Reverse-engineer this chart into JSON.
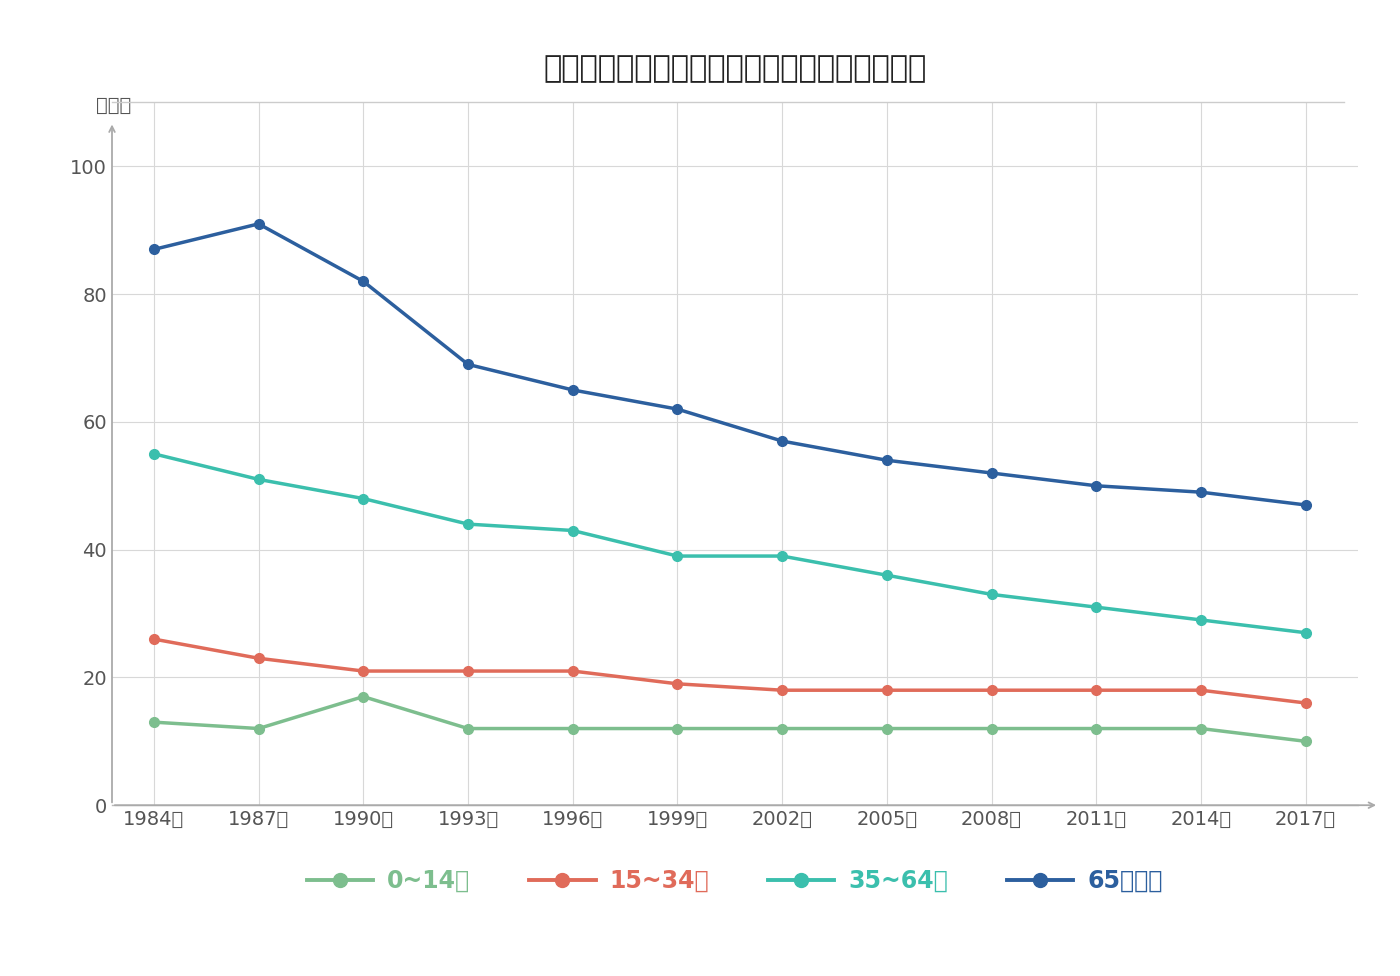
{
  "title": "年齢階級別退院患者の平均在院日数の年次推移",
  "ylabel": "（日）",
  "years": [
    "1984年",
    "1987年",
    "1990年",
    "1993年",
    "1996年",
    "1999年",
    "2002年",
    "2005年",
    "2008年",
    "2011年",
    "2014年",
    "2017年"
  ],
  "x_values": [
    1984,
    1987,
    1990,
    1993,
    1996,
    1999,
    2002,
    2005,
    2008,
    2011,
    2014,
    2017
  ],
  "series": [
    {
      "label": "0~14歳",
      "color": "#7dbe8e",
      "data": [
        13,
        12,
        17,
        12,
        12,
        12,
        12,
        12,
        12,
        12,
        12,
        10
      ]
    },
    {
      "label": "15~34歳",
      "color": "#e06b5a",
      "data": [
        26,
        23,
        21,
        21,
        21,
        19,
        18,
        18,
        18,
        18,
        18,
        16
      ]
    },
    {
      "label": "35~64歳",
      "color": "#3bbfad",
      "data": [
        55,
        51,
        48,
        44,
        43,
        39,
        39,
        36,
        33,
        31,
        29,
        27
      ]
    },
    {
      "label": "65歳以上",
      "color": "#2c5f9e",
      "data": [
        87,
        91,
        82,
        69,
        65,
        62,
        57,
        54,
        52,
        50,
        49,
        47
      ]
    }
  ],
  "ylim": [
    0,
    110
  ],
  "yticks": [
    0,
    20,
    40,
    60,
    80,
    100
  ],
  "background_color": "#ffffff",
  "grid_color": "#d8d8d8",
  "title_fontsize": 22,
  "axis_fontsize": 14,
  "legend_fontsize": 17,
  "marker_size": 7,
  "line_width": 2.5
}
